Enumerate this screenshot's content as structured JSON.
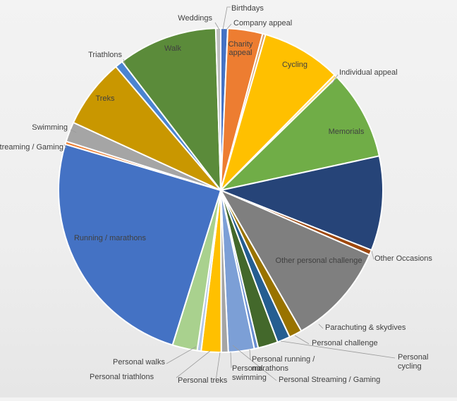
{
  "chart_data": {
    "type": "pie",
    "title": "",
    "slices": [
      {
        "label": "Birthdays",
        "value": 0.7,
        "color": "#4472c4",
        "label_inside": false
      },
      {
        "label": "Charity appeal",
        "value": 3.5,
        "color": "#ed7d31",
        "label_inside": true
      },
      {
        "label": "Company appeal",
        "value": 0.3,
        "color": "#d9a066",
        "label_inside": false
      },
      {
        "label": "Cycling",
        "value": 8.0,
        "color": "#ffc000",
        "label_inside": true
      },
      {
        "label": "Individual appeal",
        "value": 0.3,
        "color": "#ffd966",
        "label_inside": false
      },
      {
        "label": "Memorials",
        "value": 9.0,
        "color": "#70ad47",
        "label_inside": true
      },
      {
        "label": "",
        "value": 9.5,
        "color": "#264478",
        "label_inside": true
      },
      {
        "label": "Other Occasions",
        "value": 0.5,
        "color": "#9e480e",
        "label_inside": false
      },
      {
        "label": "Other personal challenge",
        "value": 10.3,
        "color": "#7f7f7f",
        "label_inside": true
      },
      {
        "label": "Parachuting & skydives",
        "value": 1.3,
        "color": "#997300",
        "label_inside": false
      },
      {
        "label": "Personal challenge",
        "value": 1.3,
        "color": "#255e91",
        "label_inside": false
      },
      {
        "label": "Personal cycling",
        "value": 2.0,
        "color": "#43682b",
        "label_inside": false
      },
      {
        "label": "Personal Streaming / Gaming",
        "value": 0.4,
        "color": "#698ed0",
        "label_inside": false
      },
      {
        "label": "Personal running / marathons",
        "value": 2.6,
        "color": "#7c9fd6",
        "label_inside": false
      },
      {
        "label": "Personal swimming",
        "value": 0.7,
        "color": "#a5a5a5",
        "label_inside": false
      },
      {
        "label": "Personal treks",
        "value": 2.0,
        "color": "#ffc000",
        "label_inside": false
      },
      {
        "label": "Personal triathlons",
        "value": 0.4,
        "color": "#b4c7e7",
        "label_inside": false
      },
      {
        "label": "Personal walks",
        "value": 2.5,
        "color": "#a9d18e",
        "label_inside": false
      },
      {
        "label": "Running / marathons",
        "value": 25.0,
        "color": "#4472c4",
        "label_inside": true
      },
      {
        "label": "Streaming / Gaming",
        "value": 0.3,
        "color": "#ed7d31",
        "label_inside": false
      },
      {
        "label": "Swimming",
        "value": 2.0,
        "color": "#a5a5a5",
        "label_inside": false
      },
      {
        "label": "Treks",
        "value": 7.0,
        "color": "#c99700",
        "label_inside": true
      },
      {
        "label": "Triathlons",
        "value": 0.8,
        "color": "#4b84d0",
        "label_inside": false
      },
      {
        "label": "Walk",
        "value": 10.0,
        "color": "#5b8b3a",
        "label_inside": true
      },
      {
        "label": "Weddings",
        "value": 0.5,
        "color": "#c0c0c0",
        "label_inside": false
      }
    ]
  }
}
